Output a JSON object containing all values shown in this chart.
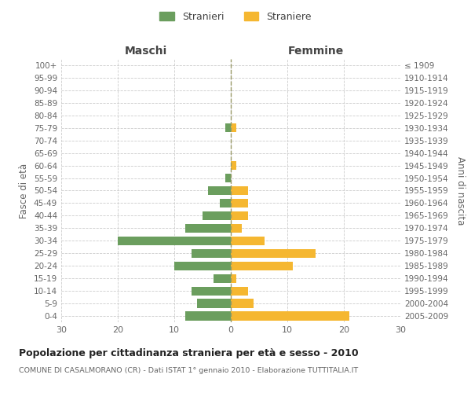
{
  "age_groups": [
    "0-4",
    "5-9",
    "10-14",
    "15-19",
    "20-24",
    "25-29",
    "30-34",
    "35-39",
    "40-44",
    "45-49",
    "50-54",
    "55-59",
    "60-64",
    "65-69",
    "70-74",
    "75-79",
    "80-84",
    "85-89",
    "90-94",
    "95-99",
    "100+"
  ],
  "birth_years": [
    "2005-2009",
    "2000-2004",
    "1995-1999",
    "1990-1994",
    "1985-1989",
    "1980-1984",
    "1975-1979",
    "1970-1974",
    "1965-1969",
    "1960-1964",
    "1955-1959",
    "1950-1954",
    "1945-1949",
    "1940-1944",
    "1935-1939",
    "1930-1934",
    "1925-1929",
    "1920-1924",
    "1915-1919",
    "1910-1914",
    "≤ 1909"
  ],
  "maschi": [
    8,
    6,
    7,
    3,
    10,
    7,
    20,
    8,
    5,
    2,
    4,
    1,
    0,
    0,
    0,
    1,
    0,
    0,
    0,
    0,
    0
  ],
  "femmine": [
    21,
    4,
    3,
    1,
    11,
    15,
    6,
    2,
    3,
    3,
    3,
    0,
    1,
    0,
    0,
    1,
    0,
    0,
    0,
    0,
    0
  ],
  "color_maschi": "#6b9e5e",
  "color_femmine": "#f5b731",
  "title": "Popolazione per cittadinanza straniera per età e sesso - 2010",
  "subtitle": "COMUNE DI CASALMORANO (CR) - Dati ISTAT 1° gennaio 2010 - Elaborazione TUTTITALIA.IT",
  "xlabel_left": "Maschi",
  "xlabel_right": "Femmine",
  "ylabel_left": "Fasce di età",
  "ylabel_right": "Anni di nascita",
  "legend_maschi": "Stranieri",
  "legend_femmine": "Straniere",
  "xlim": 30,
  "background_color": "#ffffff",
  "grid_color": "#cccccc"
}
